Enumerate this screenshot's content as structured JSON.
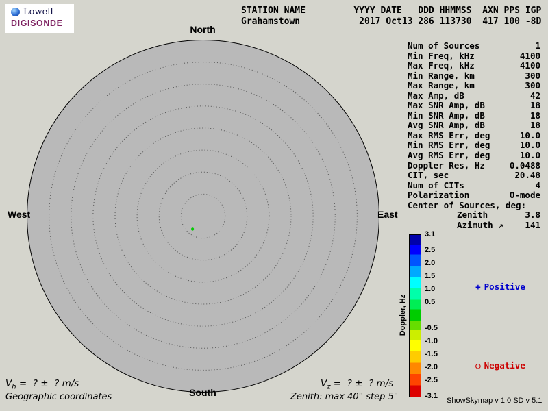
{
  "logo": {
    "brand": "Lowell",
    "product": "DIGISONDE"
  },
  "header": {
    "line1": "STATION NAME         YYYY DATE   DDD HHMMSS  AXN PPS IGP",
    "line2": "Grahamstown           2017 Oct13 286 113730  417 100 -8D"
  },
  "skymap": {
    "direction_labels": {
      "top": "North",
      "bottom": "South",
      "left": "West",
      "right": "East"
    },
    "max_zenith_deg": 40,
    "step_deg": 5,
    "sources": [
      {
        "zenith_deg": 3.8,
        "azimuth_deg": 141,
        "doppler_hz": 0.0,
        "color": "#00cc00"
      }
    ]
  },
  "parameters": {
    "rows": [
      {
        "label": "Num of Sources",
        "value": "1",
        "indent": false
      },
      {
        "label": "Min Freq, kHz",
        "value": "4100",
        "indent": false
      },
      {
        "label": "Max Freq, kHz",
        "value": "4100",
        "indent": false
      },
      {
        "label": "Min Range, km",
        "value": "300",
        "indent": false
      },
      {
        "label": "Max Range, km",
        "value": "300",
        "indent": false
      },
      {
        "label": "Max Amp, dB",
        "value": "42",
        "indent": false
      },
      {
        "label": "Max SNR Amp, dB",
        "value": "18",
        "indent": false
      },
      {
        "label": "Min SNR Amp, dB",
        "value": "18",
        "indent": false
      },
      {
        "label": "Avg SNR Amp, dB",
        "value": "18",
        "indent": false
      },
      {
        "label": "Max RMS Err, deg",
        "value": "10.0",
        "indent": false
      },
      {
        "label": "Min RMS Err, deg",
        "value": "10.0",
        "indent": false
      },
      {
        "label": "Avg RMS Err, deg",
        "value": "10.0",
        "indent": false
      },
      {
        "label": "Doppler Res, Hz",
        "value": "0.0488",
        "indent": false
      },
      {
        "label": "CIT, sec",
        "value": "20.48",
        "indent": false
      },
      {
        "label": "Num of CITs",
        "value": "4",
        "indent": false
      },
      {
        "label": "Polarization",
        "value": "O-mode",
        "indent": false
      },
      {
        "label": "Center of Sources, deg:",
        "value": "",
        "indent": false
      },
      {
        "label": "Zenith",
        "value": "3.8",
        "indent": true
      },
      {
        "label": "Azimuth ↗",
        "value": "141",
        "indent": true
      }
    ]
  },
  "colorbar": {
    "axis_label": "Doppler, Hz",
    "max": 3.1,
    "min": -3.1,
    "ticks": [
      "3.1",
      "2.5",
      "2.0",
      "1.5",
      "1.0",
      "0.5",
      "-0.5",
      "-1.0",
      "-1.5",
      "-2.0",
      "-2.5",
      "-3.1"
    ],
    "positive": {
      "marker": "+",
      "label": "Positive",
      "color": "#0000cc"
    },
    "negative": {
      "marker": "○",
      "label": "Negative",
      "color": "#cc0000"
    }
  },
  "footer": {
    "vh": {
      "symbol": "V",
      "sub": "h",
      "rest": " =  ? ±  ? m/s"
    },
    "vz": {
      "symbol": "V",
      "sub": "z",
      "rest": " =  ? ±  ? m/s"
    },
    "coordinates": "Geographic coordinates",
    "zenith_note": "Zenith: max 40°  step 5°",
    "version": "ShowSkymap v 1.0  SD v 5.1"
  }
}
